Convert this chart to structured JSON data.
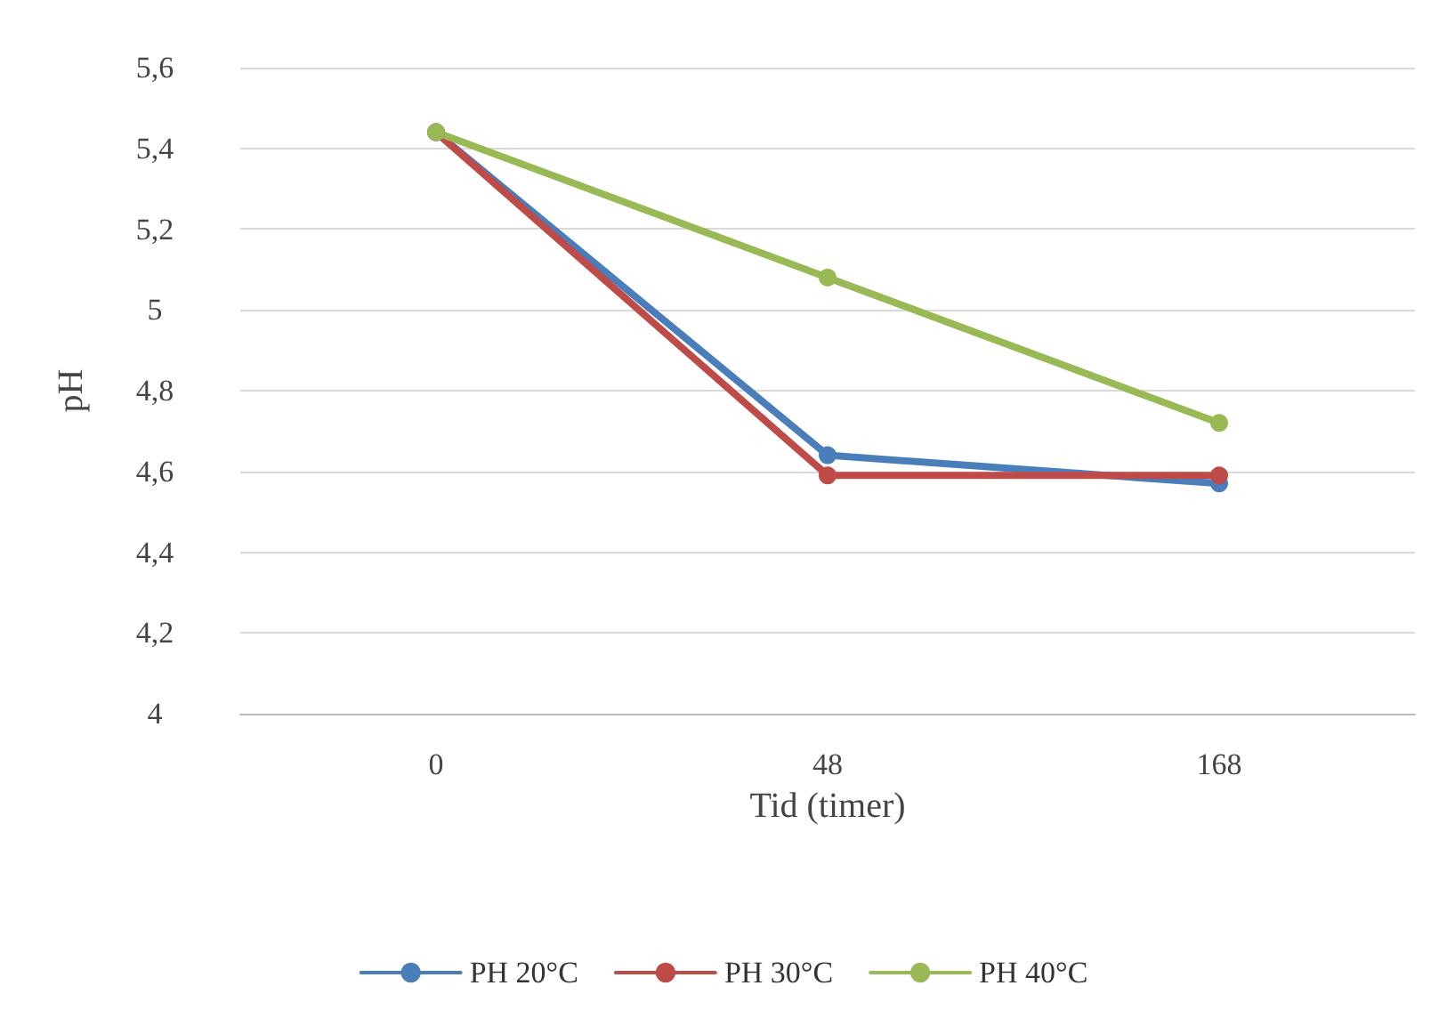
{
  "chart_data": {
    "type": "line",
    "xlabel": "Tid (timer)",
    "ylabel": "pH",
    "categories": [
      "0",
      "48",
      "168"
    ],
    "series": [
      {
        "name": "PH 20°C",
        "color": "#4a7ebb",
        "values": [
          5.44,
          4.64,
          4.57
        ]
      },
      {
        "name": "PH 30°C",
        "color": "#be4b48",
        "values": [
          5.44,
          4.59,
          4.59
        ]
      },
      {
        "name": "PH 40°C",
        "color": "#98b954",
        "values": [
          5.44,
          5.08,
          4.72
        ]
      }
    ],
    "ylim": [
      4,
      5.6
    ],
    "yticks": [
      4,
      {
        "value": 4.2,
        "label": "4,2"
      },
      {
        "value": 4.4,
        "label": "4,4"
      },
      {
        "value": 4.6,
        "label": "4,6"
      },
      {
        "value": 4.8,
        "label": "4,8"
      },
      5,
      {
        "value": 5.2,
        "label": "5,2"
      },
      {
        "value": 5.4,
        "label": "5,4"
      },
      {
        "value": 5.6,
        "label": "5,6"
      }
    ],
    "grid": "y",
    "legend": "bottom",
    "marker": "circle",
    "line_style": "solid"
  }
}
